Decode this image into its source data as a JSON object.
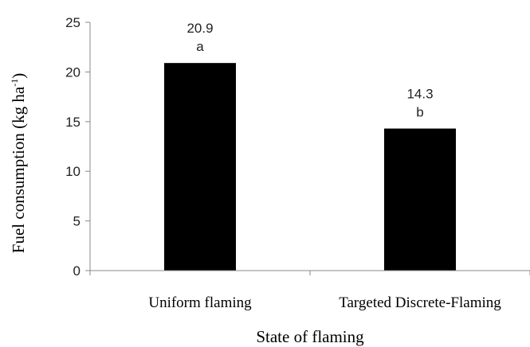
{
  "chart_data": {
    "type": "bar",
    "categories": [
      "Uniform flaming",
      "Targeted Discrete-Flaming"
    ],
    "values": [
      20.9,
      14.3
    ],
    "data_labels": [
      "20.9",
      "14.3"
    ],
    "significance_letters": [
      "a",
      "b"
    ],
    "xlabel": "State of flaming",
    "ylabel": {
      "main": "Fuel consumption (kg ha",
      "superscript": "-1",
      "close": ")"
    },
    "ylim": [
      0,
      25
    ],
    "yticks": [
      "0",
      "5",
      "10",
      "15",
      "20",
      "25"
    ],
    "grid": false,
    "legend": "none",
    "bar_color": "#000000"
  }
}
